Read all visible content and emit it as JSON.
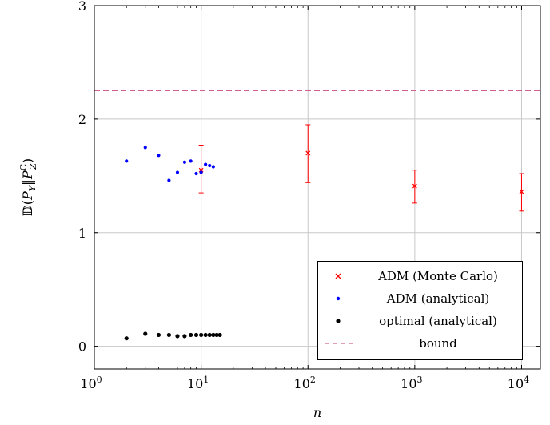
{
  "chart_data": {
    "type": "scatter",
    "title": "",
    "xlabel": "n",
    "ylabel": "𝔻(P_Y‖P_Z^C)",
    "xscale": "log",
    "xlim": [
      1,
      15000
    ],
    "ylim": [
      -0.2,
      3
    ],
    "grid": true,
    "legend_placement": "bottom-right",
    "x_ticks": [
      {
        "value": 1,
        "label": "10",
        "exp": "0"
      },
      {
        "value": 10,
        "label": "10",
        "exp": "1"
      },
      {
        "value": 100,
        "label": "10",
        "exp": "2"
      },
      {
        "value": 1000,
        "label": "10",
        "exp": "3"
      },
      {
        "value": 10000,
        "label": "10",
        "exp": "4"
      }
    ],
    "y_ticks": [
      {
        "value": 0,
        "label": "0"
      },
      {
        "value": 1,
        "label": "1"
      },
      {
        "value": 2,
        "label": "2"
      },
      {
        "value": 3,
        "label": "3"
      }
    ],
    "series": [
      {
        "name": "ADM (Monte Carlo)",
        "color": "#ff0000",
        "marker": "x",
        "points": [
          {
            "x": 10,
            "y": 1.55,
            "err_low": 1.35,
            "err_high": 1.77
          },
          {
            "x": 100,
            "y": 1.7,
            "err_low": 1.44,
            "err_high": 1.95
          },
          {
            "x": 1000,
            "y": 1.41,
            "err_low": 1.26,
            "err_high": 1.55
          },
          {
            "x": 10000,
            "y": 1.36,
            "err_low": 1.19,
            "err_high": 1.52
          }
        ]
      },
      {
        "name": "ADM (analytical)",
        "color": "#0000ff",
        "marker": "dot",
        "points": [
          {
            "x": 2,
            "y": 1.63
          },
          {
            "x": 3,
            "y": 1.75
          },
          {
            "x": 4,
            "y": 1.68
          },
          {
            "x": 5,
            "y": 1.46
          },
          {
            "x": 6,
            "y": 1.53
          },
          {
            "x": 7,
            "y": 1.62
          },
          {
            "x": 8,
            "y": 1.63
          },
          {
            "x": 9,
            "y": 1.52
          },
          {
            "x": 10,
            "y": 1.53
          },
          {
            "x": 11,
            "y": 1.6
          },
          {
            "x": 12,
            "y": 1.59
          },
          {
            "x": 13,
            "y": 1.58
          }
        ]
      },
      {
        "name": "optimal (analytical)",
        "color": "#000000",
        "marker": "dot",
        "points": [
          {
            "x": 2,
            "y": 0.07
          },
          {
            "x": 3,
            "y": 0.11
          },
          {
            "x": 4,
            "y": 0.1
          },
          {
            "x": 5,
            "y": 0.1
          },
          {
            "x": 6,
            "y": 0.09
          },
          {
            "x": 7,
            "y": 0.09
          },
          {
            "x": 8,
            "y": 0.1
          },
          {
            "x": 9,
            "y": 0.1
          },
          {
            "x": 10,
            "y": 0.1
          },
          {
            "x": 11,
            "y": 0.1
          },
          {
            "x": 12,
            "y": 0.1
          },
          {
            "x": 13,
            "y": 0.1
          },
          {
            "x": 14,
            "y": 0.1
          },
          {
            "x": 15,
            "y": 0.1
          }
        ]
      },
      {
        "name": "bound",
        "color": "#d0608f",
        "marker": "dashed-line",
        "value": 2.25
      }
    ]
  }
}
